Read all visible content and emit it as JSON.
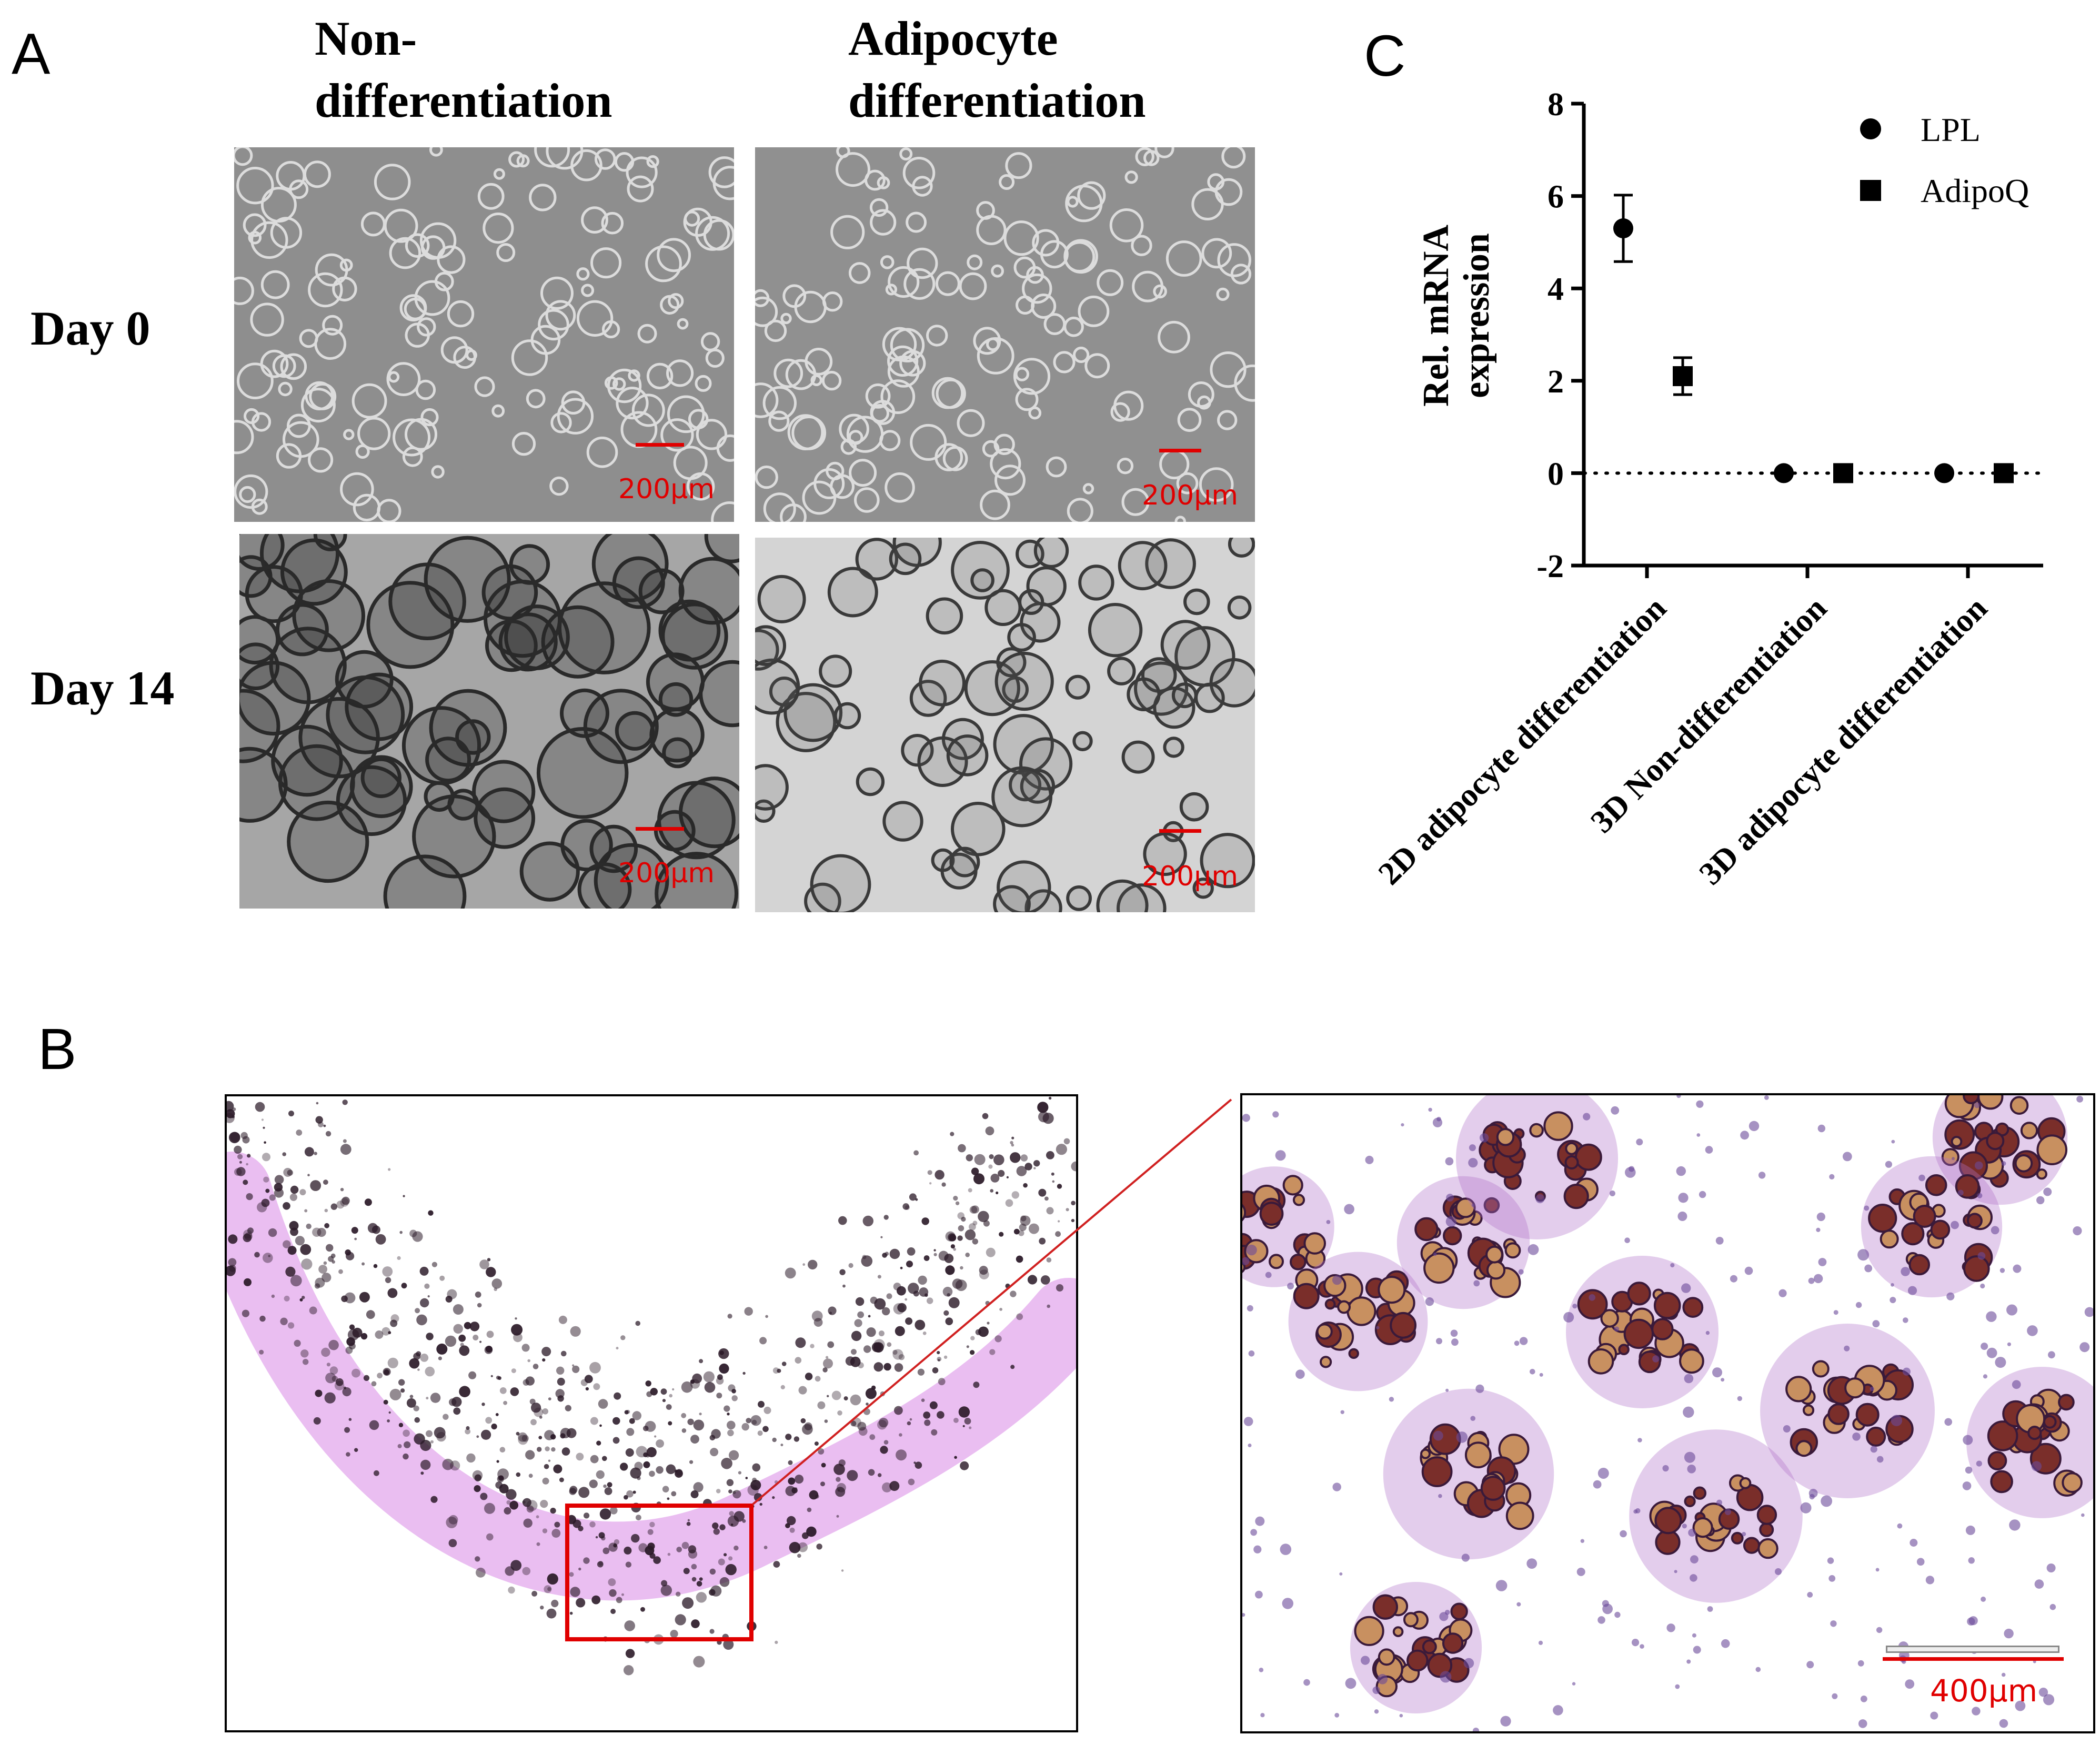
{
  "panels": {
    "a": {
      "letter": "A",
      "columns": [
        "Non-\ndifferentiation",
        "Adipocyte\ndifferentiation"
      ],
      "col_line1": [
        "Non-",
        "Adipocyte"
      ],
      "col_line2": [
        "differentiation",
        "differentiation"
      ],
      "rows": [
        "Day 0",
        "Day 14"
      ],
      "scale_bar": "200μm"
    },
    "b": {
      "letter": "B",
      "scale_bar": "400μm",
      "colors": {
        "stain": "#c070d0",
        "droplet": "#8a3a2a",
        "box": "#e00000"
      }
    },
    "c": {
      "letter": "C"
    }
  },
  "chart_data": {
    "type": "scatter",
    "title": "",
    "xlabel": "",
    "ylabel": "Rel.  mRNA expression",
    "ylabel_lines": [
      "Rel.  mRNA",
      "expression"
    ],
    "categories": [
      "2D adipocyte differentiation",
      "3D Non-differentiation",
      "3D adipocyte differentiation"
    ],
    "ylim": [
      -2,
      8
    ],
    "yticks": [
      -2,
      0,
      2,
      4,
      6,
      8
    ],
    "reference_line": 0,
    "legend_position": "top-right",
    "series": [
      {
        "name": "LPL",
        "marker": "circle",
        "values": [
          5.3,
          0,
          0
        ],
        "errors": [
          0.72,
          0,
          0
        ]
      },
      {
        "name": "AdipoQ",
        "marker": "square",
        "values": [
          2.1,
          0,
          0
        ],
        "errors": [
          0.4,
          0,
          0
        ]
      }
    ]
  }
}
